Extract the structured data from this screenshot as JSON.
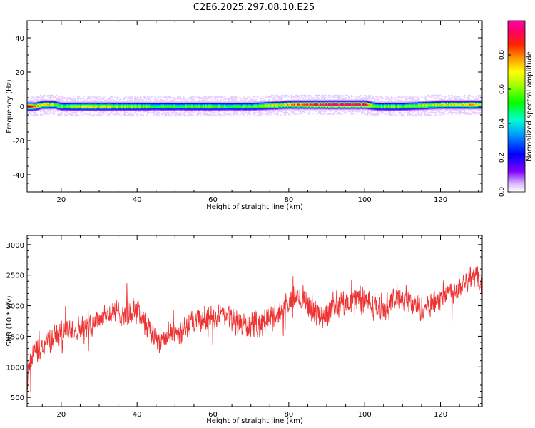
{
  "figure": {
    "title": "C2E6.2025.297.08.10.E25"
  },
  "chart_data": [
    {
      "type": "heatmap",
      "title": "C2E6.2025.297.08.10.E25",
      "xlabel": "Height of straight line (km)",
      "ylabel": "Frequency (Hz)",
      "xlim": [
        11,
        131
      ],
      "ylim": [
        -50,
        50
      ],
      "x_ticks": [
        20,
        40,
        60,
        80,
        100,
        120
      ],
      "y_ticks": [
        -40,
        -20,
        0,
        20,
        40
      ],
      "grid": false,
      "colorbar": {
        "label": "Normalized spectral amplitude",
        "range": [
          0,
          1
        ],
        "ticks": [
          0.0,
          0.2,
          0.4,
          0.6,
          0.8
        ],
        "colormap": "rainbow (purple-blue-cyan-green-yellow-orange-red-magenta)"
      },
      "ridge": {
        "description": "narrow band of energy centered near 0 Hz across all heights",
        "x": [
          11,
          13,
          15,
          18,
          20,
          30,
          40,
          50,
          60,
          70,
          80,
          85,
          90,
          95,
          100,
          103,
          106,
          110,
          120,
          131
        ],
        "center_freq_hz": [
          0,
          0,
          1,
          1,
          0,
          0,
          0,
          0,
          0,
          0,
          1,
          1,
          1,
          1,
          1,
          0,
          0,
          0,
          1,
          1
        ],
        "peak_amplitude": [
          0.9,
          0.85,
          0.75,
          0.65,
          0.6,
          0.7,
          0.6,
          0.55,
          0.55,
          0.55,
          0.75,
          0.95,
          0.98,
          0.95,
          0.9,
          0.6,
          0.6,
          0.6,
          0.7,
          0.75
        ]
      }
    },
    {
      "type": "line",
      "xlabel": "Height of straight line (km)",
      "ylabel": "SNR (10 * v/v)",
      "xlim": [
        11,
        131
      ],
      "ylim": [
        350,
        3150
      ],
      "x_ticks": [
        20,
        40,
        60,
        80,
        100,
        120
      ],
      "y_ticks": [
        500,
        1000,
        1500,
        2000,
        2500,
        3000
      ],
      "grid": false,
      "series": [
        {
          "color": "#ee3333",
          "x": [
            11,
            12,
            13,
            14,
            15,
            17,
            20,
            23,
            26,
            29,
            32,
            35,
            38,
            40,
            42,
            44,
            46,
            48,
            50,
            53,
            56,
            60,
            63,
            66,
            69,
            72,
            75,
            78,
            80,
            82,
            84,
            86,
            88,
            90,
            92,
            95,
            98,
            100,
            103,
            106,
            109,
            112,
            115,
            118,
            121,
            124,
            127,
            129,
            131
          ],
          "values": [
            750,
            1100,
            1300,
            1250,
            1350,
            1450,
            1550,
            1600,
            1650,
            1750,
            1850,
            1900,
            1850,
            1950,
            1750,
            1550,
            1450,
            1500,
            1550,
            1650,
            1750,
            1800,
            1850,
            1750,
            1650,
            1700,
            1800,
            1900,
            2050,
            2150,
            2100,
            1950,
            1850,
            1850,
            2000,
            2050,
            2150,
            2100,
            1950,
            2000,
            2150,
            2050,
            1950,
            2050,
            2200,
            2250,
            2450,
            2500,
            2350
          ],
          "noise_amplitude": 180
        }
      ]
    }
  ]
}
